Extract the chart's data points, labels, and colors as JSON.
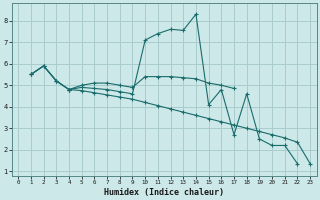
{
  "xlabel": "Humidex (Indice chaleur)",
  "bg_color": "#cce8e8",
  "grid_color": "#aacccc",
  "line_color": "#1a6b6b",
  "xlim": [
    -0.5,
    23.5
  ],
  "ylim": [
    0.8,
    8.8
  ],
  "xticks": [
    0,
    1,
    2,
    3,
    4,
    5,
    6,
    7,
    8,
    9,
    10,
    11,
    12,
    13,
    14,
    15,
    16,
    17,
    18,
    19,
    20,
    21,
    22,
    23
  ],
  "yticks": [
    1,
    2,
    3,
    4,
    5,
    6,
    7,
    8
  ],
  "lines": [
    {
      "x": [
        1,
        2,
        3,
        4,
        5,
        6,
        7,
        8,
        9,
        10,
        11,
        12,
        13,
        14,
        15,
        16,
        17,
        18,
        19,
        20,
        21,
        22
      ],
      "y": [
        5.5,
        5.9,
        5.2,
        4.8,
        4.9,
        4.85,
        4.8,
        4.7,
        4.6,
        7.1,
        7.4,
        7.6,
        7.55,
        8.3,
        4.1,
        4.8,
        2.7,
        4.6,
        2.5,
        2.2,
        2.2,
        1.35
      ]
    },
    {
      "x": [
        1,
        2,
        3,
        4,
        5,
        6,
        7,
        8,
        9,
        10,
        11,
        12,
        13,
        14,
        15,
        16,
        17
      ],
      "y": [
        5.5,
        5.9,
        5.2,
        4.8,
        5.0,
        5.1,
        5.1,
        5.0,
        4.9,
        5.4,
        5.4,
        5.4,
        5.35,
        5.3,
        5.1,
        5.0,
        4.85
      ]
    },
    {
      "x": [
        1,
        2,
        3,
        4,
        5,
        6,
        7,
        8,
        9,
        10,
        11,
        12,
        13,
        14,
        15,
        16,
        17,
        18,
        19,
        20,
        21,
        22,
        23
      ],
      "y": [
        5.5,
        5.9,
        5.2,
        4.8,
        4.75,
        4.65,
        4.55,
        4.45,
        4.35,
        4.2,
        4.05,
        3.9,
        3.75,
        3.6,
        3.45,
        3.3,
        3.15,
        3.0,
        2.85,
        2.7,
        2.55,
        2.35,
        1.35
      ]
    }
  ]
}
